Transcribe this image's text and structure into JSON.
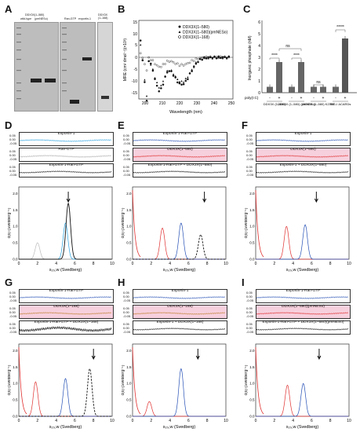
{
  "labels": {
    "A": "A",
    "B": "B",
    "C": "C",
    "D": "D",
    "E": "E",
    "F": "F",
    "G": "G",
    "H": "H",
    "I": "I"
  },
  "panelA": {
    "gel1_header": "DDX3X(1–580)",
    "gel1_cols": [
      "wild-type",
      "(pmNESo)"
    ],
    "gel2_cols": [
      "Ran-GTP",
      "exportin-1"
    ],
    "gel3_header": "DDX3X (1–168)",
    "markers_left": [
      "250",
      "150",
      "100",
      "75",
      "50",
      "37",
      "25",
      "20",
      "15",
      "10"
    ],
    "markers_mid": [
      "250",
      "150",
      "100",
      "75",
      "50",
      "37",
      "25",
      "20",
      "15",
      "10"
    ],
    "markers_right": [
      "150",
      "100",
      "75",
      "50",
      "37",
      "25",
      "20",
      "15",
      "10"
    ]
  },
  "panelB": {
    "legend": [
      "DDX3X(1–580)",
      "DDX3X(1–580)(pmNESo)",
      "DDX3X(1–168)"
    ],
    "ylabel": "MRE (cm² dmol⁻¹)(×10³)",
    "xlabel": "Wavelength (nm)",
    "yticks": [
      "15",
      "10",
      "5",
      "0",
      "-5",
      "-10",
      "-15"
    ],
    "xticks": [
      "200",
      "210",
      "220",
      "230",
      "240",
      "250"
    ]
  },
  "panelC": {
    "ylabel": "Inorganic phosphate (nM)",
    "yticks": [
      "0",
      "1",
      "2",
      "3",
      "4",
      "5",
      "6"
    ],
    "poly_label": "poly(I:C)",
    "signs": [
      "-",
      "+",
      "-",
      "+",
      "-",
      "+",
      "-",
      "+"
    ],
    "groups": [
      "DDX3X (1–580)",
      "DDX3X (1–580) (pmNESo)",
      "DDX3X (1–580) K230E",
      "RIG-I ΔCARDs"
    ],
    "sig": [
      "****",
      "****",
      "ns",
      "ns",
      "*****"
    ],
    "bars": [
      0.5,
      2.6,
      0.5,
      2.6,
      0.5,
      0.5,
      0.5,
      4.6
    ]
  },
  "traces": {
    "D": [
      "Exportin-1",
      "Ran-GTP",
      "Exportin-1-Ran-GTP"
    ],
    "E": [
      "Exportin-1-Ran-GTP",
      "DDX3X(1–580)",
      "Exportin-1-Ran-GTP + DDX3X(1–580)"
    ],
    "F": [
      "Exportin-1",
      "DDX3X(1–580)",
      "Exportin-1 + DDX3X(1–580)"
    ],
    "G": [
      "Exportin-1-Ran-GTP",
      "DDX3X(1–168)",
      "Exportin-1-Ran-GTP + DDX3X(1–168)"
    ],
    "H": [
      "Exportin-1",
      "DDX3X(1–168)",
      "Exportin-1 + DDX3X(1–168)"
    ],
    "I": [
      "Exportin-1-Ran-GTP",
      "DDX3X(1–580)(pmNESo)",
      "Exportin-1-Ran-GTP + DDX3X(1–580)(pmNESo)"
    ]
  },
  "residual_ticks": [
    "0.05",
    "0.00",
    "-0.05"
  ],
  "cs_ylabel": "c(s) (Svedberg⁻¹)",
  "cs_xlabel_D": "s₂₀,w (Svedberg)",
  "cs_xlabel": "s₂₀,w (Svedberg)",
  "cs_xticks": [
    "0",
    "2",
    "4",
    "6",
    "8",
    "10"
  ],
  "cs_yticks": [
    "0.0",
    "0.5",
    "1.0",
    "1.5",
    "2.0"
  ]
}
